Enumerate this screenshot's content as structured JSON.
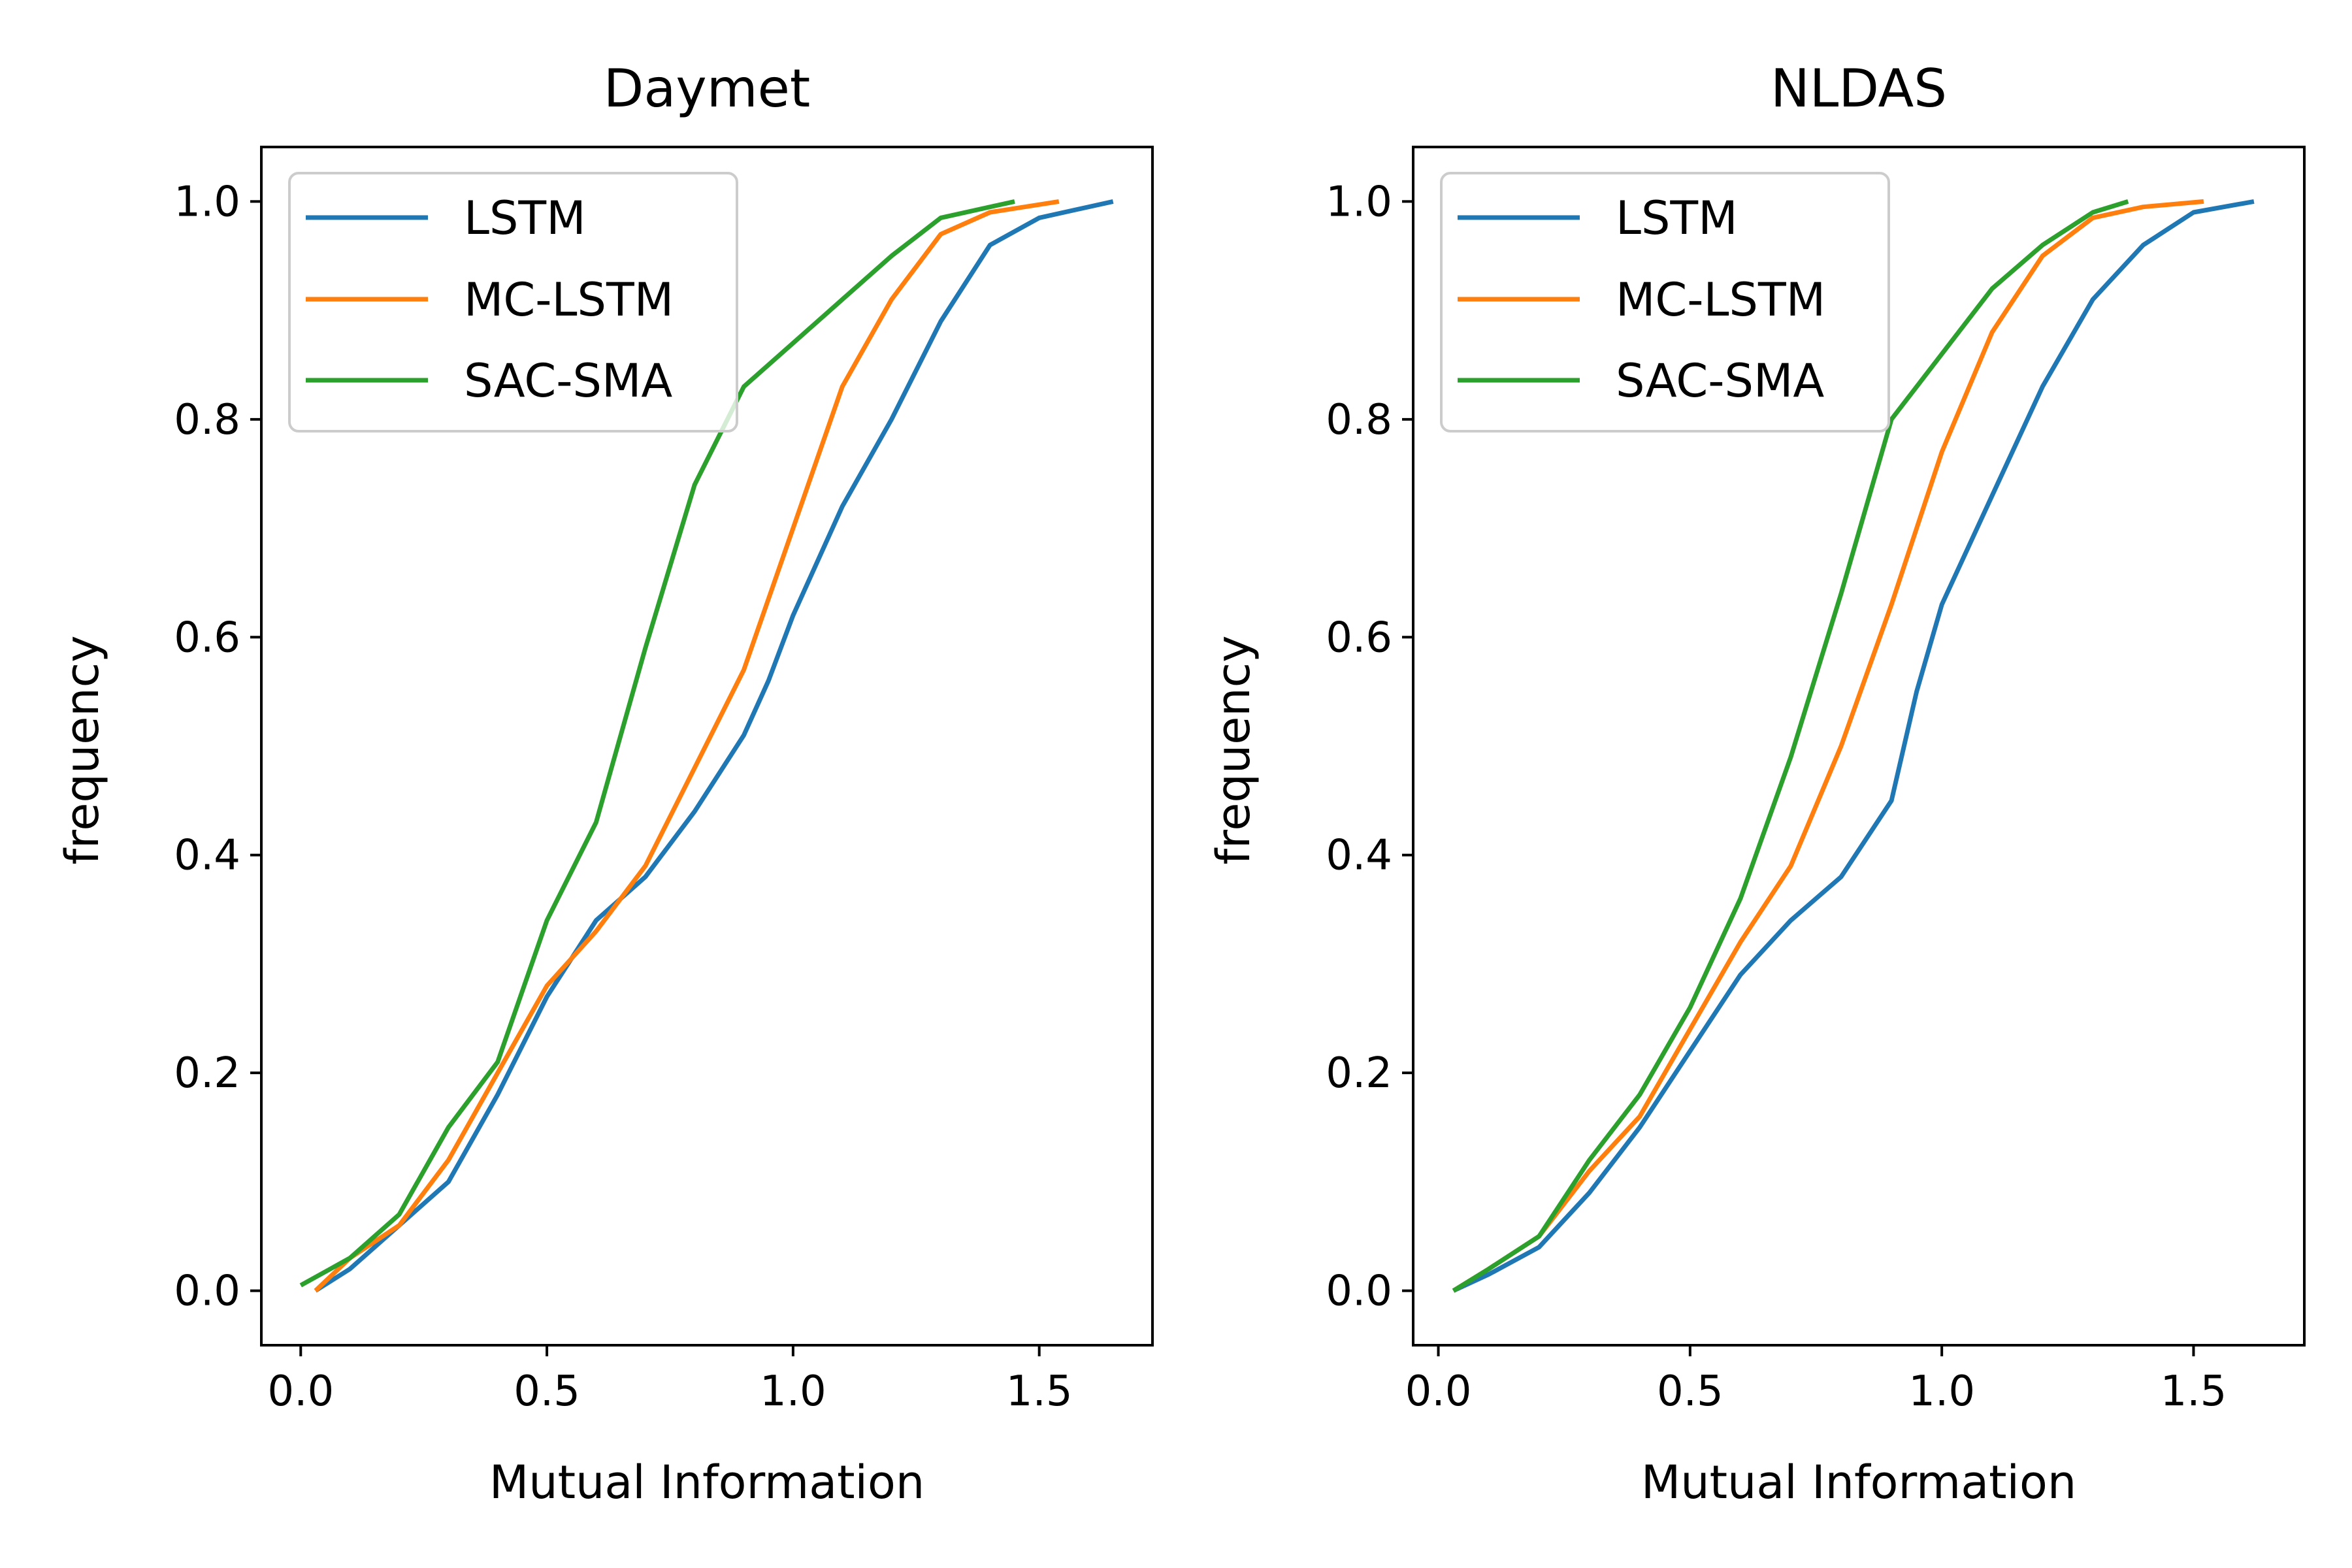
{
  "figure": {
    "colors": {
      "LSTM": "#1f77b4",
      "MC-LSTM": "#ff7f0e",
      "SAC-SMA": "#2ca02c"
    }
  },
  "chart_data": [
    {
      "type": "line",
      "title": "Daymet",
      "xlabel": "Mutual Information",
      "ylabel": "frequency",
      "xlim": [
        -0.08,
        1.73
      ],
      "ylim": [
        -0.05,
        1.05
      ],
      "xticks": [
        "0.0",
        "0.5",
        "1.0",
        "1.5"
      ],
      "yticks": [
        "0.0",
        "0.2",
        "0.4",
        "0.6",
        "0.8",
        "1.0"
      ],
      "legend": "top-left",
      "grid": false,
      "series": [
        {
          "name": "LSTM",
          "color": "#1f77b4",
          "x": [
            0.03,
            0.1,
            0.2,
            0.3,
            0.4,
            0.5,
            0.6,
            0.7,
            0.8,
            0.9,
            0.95,
            1.0,
            1.1,
            1.2,
            1.3,
            1.4,
            1.5,
            1.65
          ],
          "y": [
            0.0,
            0.02,
            0.06,
            0.1,
            0.18,
            0.27,
            0.34,
            0.38,
            0.44,
            0.51,
            0.56,
            0.62,
            0.72,
            0.8,
            0.89,
            0.96,
            0.985,
            1.0
          ]
        },
        {
          "name": "MC-LSTM",
          "color": "#ff7f0e",
          "x": [
            0.03,
            0.1,
            0.2,
            0.3,
            0.4,
            0.5,
            0.6,
            0.7,
            0.8,
            0.9,
            1.0,
            1.1,
            1.2,
            1.3,
            1.4,
            1.54
          ],
          "y": [
            0.0,
            0.03,
            0.06,
            0.12,
            0.2,
            0.28,
            0.33,
            0.39,
            0.48,
            0.57,
            0.7,
            0.83,
            0.91,
            0.97,
            0.99,
            1.0
          ]
        },
        {
          "name": "SAC-SMA",
          "color": "#2ca02c",
          "x": [
            0.0,
            0.1,
            0.2,
            0.3,
            0.4,
            0.5,
            0.6,
            0.7,
            0.8,
            0.9,
            1.0,
            1.1,
            1.2,
            1.3,
            1.45
          ],
          "y": [
            0.005,
            0.03,
            0.07,
            0.15,
            0.21,
            0.34,
            0.43,
            0.59,
            0.74,
            0.83,
            0.87,
            0.91,
            0.95,
            0.985,
            1.0
          ]
        }
      ]
    },
    {
      "type": "line",
      "title": "NLDAS",
      "xlabel": "Mutual Information",
      "ylabel": "frequency",
      "xlim": [
        -0.05,
        1.72
      ],
      "ylim": [
        -0.05,
        1.05
      ],
      "xticks": [
        "0.0",
        "0.5",
        "1.0",
        "1.5"
      ],
      "yticks": [
        "0.0",
        "0.2",
        "0.4",
        "0.6",
        "0.8",
        "1.0"
      ],
      "legend": "top-left",
      "grid": false,
      "series": [
        {
          "name": "LSTM",
          "color": "#1f77b4",
          "x": [
            0.03,
            0.1,
            0.2,
            0.3,
            0.4,
            0.5,
            0.6,
            0.7,
            0.8,
            0.9,
            0.95,
            1.0,
            1.1,
            1.2,
            1.3,
            1.4,
            1.5,
            1.62
          ],
          "y": [
            0.0,
            0.015,
            0.04,
            0.09,
            0.15,
            0.22,
            0.29,
            0.34,
            0.38,
            0.45,
            0.55,
            0.63,
            0.73,
            0.83,
            0.91,
            0.96,
            0.99,
            1.0
          ]
        },
        {
          "name": "MC-LSTM",
          "color": "#ff7f0e",
          "x": [
            0.03,
            0.1,
            0.2,
            0.3,
            0.4,
            0.5,
            0.6,
            0.7,
            0.8,
            0.9,
            1.0,
            1.1,
            1.2,
            1.3,
            1.4,
            1.52
          ],
          "y": [
            0.0,
            0.02,
            0.05,
            0.11,
            0.16,
            0.24,
            0.32,
            0.39,
            0.5,
            0.63,
            0.77,
            0.88,
            0.95,
            0.985,
            0.995,
            1.0
          ]
        },
        {
          "name": "SAC-SMA",
          "color": "#2ca02c",
          "x": [
            0.03,
            0.1,
            0.2,
            0.3,
            0.4,
            0.5,
            0.6,
            0.7,
            0.8,
            0.9,
            1.0,
            1.1,
            1.2,
            1.3,
            1.37
          ],
          "y": [
            0.0,
            0.02,
            0.05,
            0.12,
            0.18,
            0.26,
            0.36,
            0.49,
            0.64,
            0.8,
            0.86,
            0.92,
            0.96,
            0.99,
            1.0
          ]
        }
      ]
    }
  ]
}
